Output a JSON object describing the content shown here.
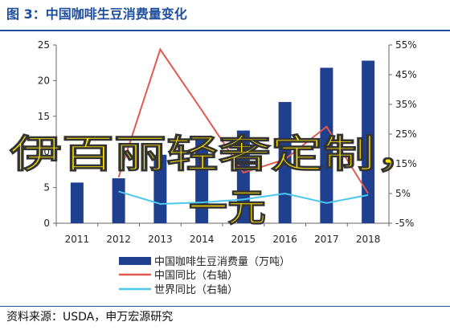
{
  "title": "图 3：中国咖啡生豆消费量变化",
  "source": "资料来源：USDA，申万宏源研究",
  "watermark": {
    "line1": "伊百丽轻奢定制，",
    "line2": "一元"
  },
  "colors": {
    "bars": "#1f3f8f",
    "china_yoy": "#e05a50",
    "world_yoy": "#4cc8ec",
    "title": "#1f4e9c"
  },
  "chart_data": {
    "type": "bar",
    "title": "图 3：中国咖啡生豆消费量变化",
    "categories": [
      "2011",
      "2012",
      "2013",
      "2014",
      "2015",
      "2016",
      "2017",
      "2018"
    ],
    "y_left": {
      "ticks": [
        "0",
        "5",
        "10",
        "15",
        "20",
        "25"
      ],
      "ylim": [
        0,
        25
      ]
    },
    "y_right": {
      "ticks": [
        "-5%",
        "5%",
        "15%",
        "25%",
        "35%",
        "45%",
        "55%"
      ],
      "ylim": [
        -5,
        55
      ]
    },
    "grid": false,
    "legend_position": "bottom",
    "series": [
      {
        "name": "中国咖啡生豆消费量（万吨）",
        "type": "bar",
        "axis": "left",
        "values": [
          5.7,
          6.3,
          9.6,
          12.0,
          13.0,
          17.0,
          21.8,
          22.8
        ]
      },
      {
        "name": "中国同比（右轴）",
        "type": "line",
        "axis": "right",
        "values": [
          null,
          10.5,
          53.5,
          33.0,
          12.0,
          16.5,
          27.5,
          5.0
        ]
      },
      {
        "name": "世界同比（右轴）",
        "type": "line",
        "axis": "right",
        "values": [
          null,
          5.7,
          1.5,
          2.0,
          3.0,
          5.0,
          1.8,
          4.5
        ]
      }
    ]
  }
}
